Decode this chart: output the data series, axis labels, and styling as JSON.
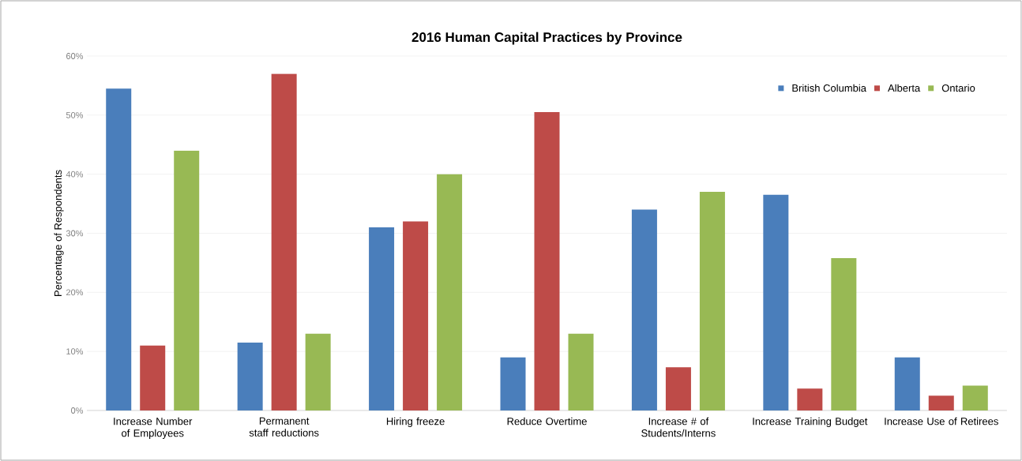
{
  "chart_data": {
    "type": "bar",
    "title": "2016 Human Capital Practices by Province",
    "ylabel": "Percentage of Respondents",
    "categories": [
      "Increase Number of Employees",
      "Permanent staff reductions",
      "Hiring freeze",
      "Reduce Overtime",
      "Increase # of Students/Interns",
      "Increase Training Budget",
      "Increase Use of Retirees"
    ],
    "series": [
      {
        "name": "British Columbia",
        "color": "#4a7ebb",
        "values": [
          54.5,
          11.5,
          31,
          9,
          34,
          36.5,
          9
        ]
      },
      {
        "name": "Alberta",
        "color": "#be4b48",
        "values": [
          11,
          57,
          32,
          50.5,
          7.3,
          3.7,
          2.5
        ]
      },
      {
        "name": "Ontario",
        "color": "#98b954",
        "values": [
          44,
          13,
          40,
          13,
          37,
          25.8,
          4.2
        ]
      }
    ],
    "ylim": [
      0,
      60
    ],
    "yticks": [
      {
        "value": 0,
        "label": "0%"
      },
      {
        "value": 10,
        "label": "10%"
      },
      {
        "value": 20,
        "label": "20%"
      },
      {
        "value": 30,
        "label": "30%"
      },
      {
        "value": 40,
        "label": "40%"
      },
      {
        "value": 50,
        "label": "50%"
      },
      {
        "value": 60,
        "label": "60%"
      }
    ],
    "grid": "y",
    "legend": "top right"
  }
}
